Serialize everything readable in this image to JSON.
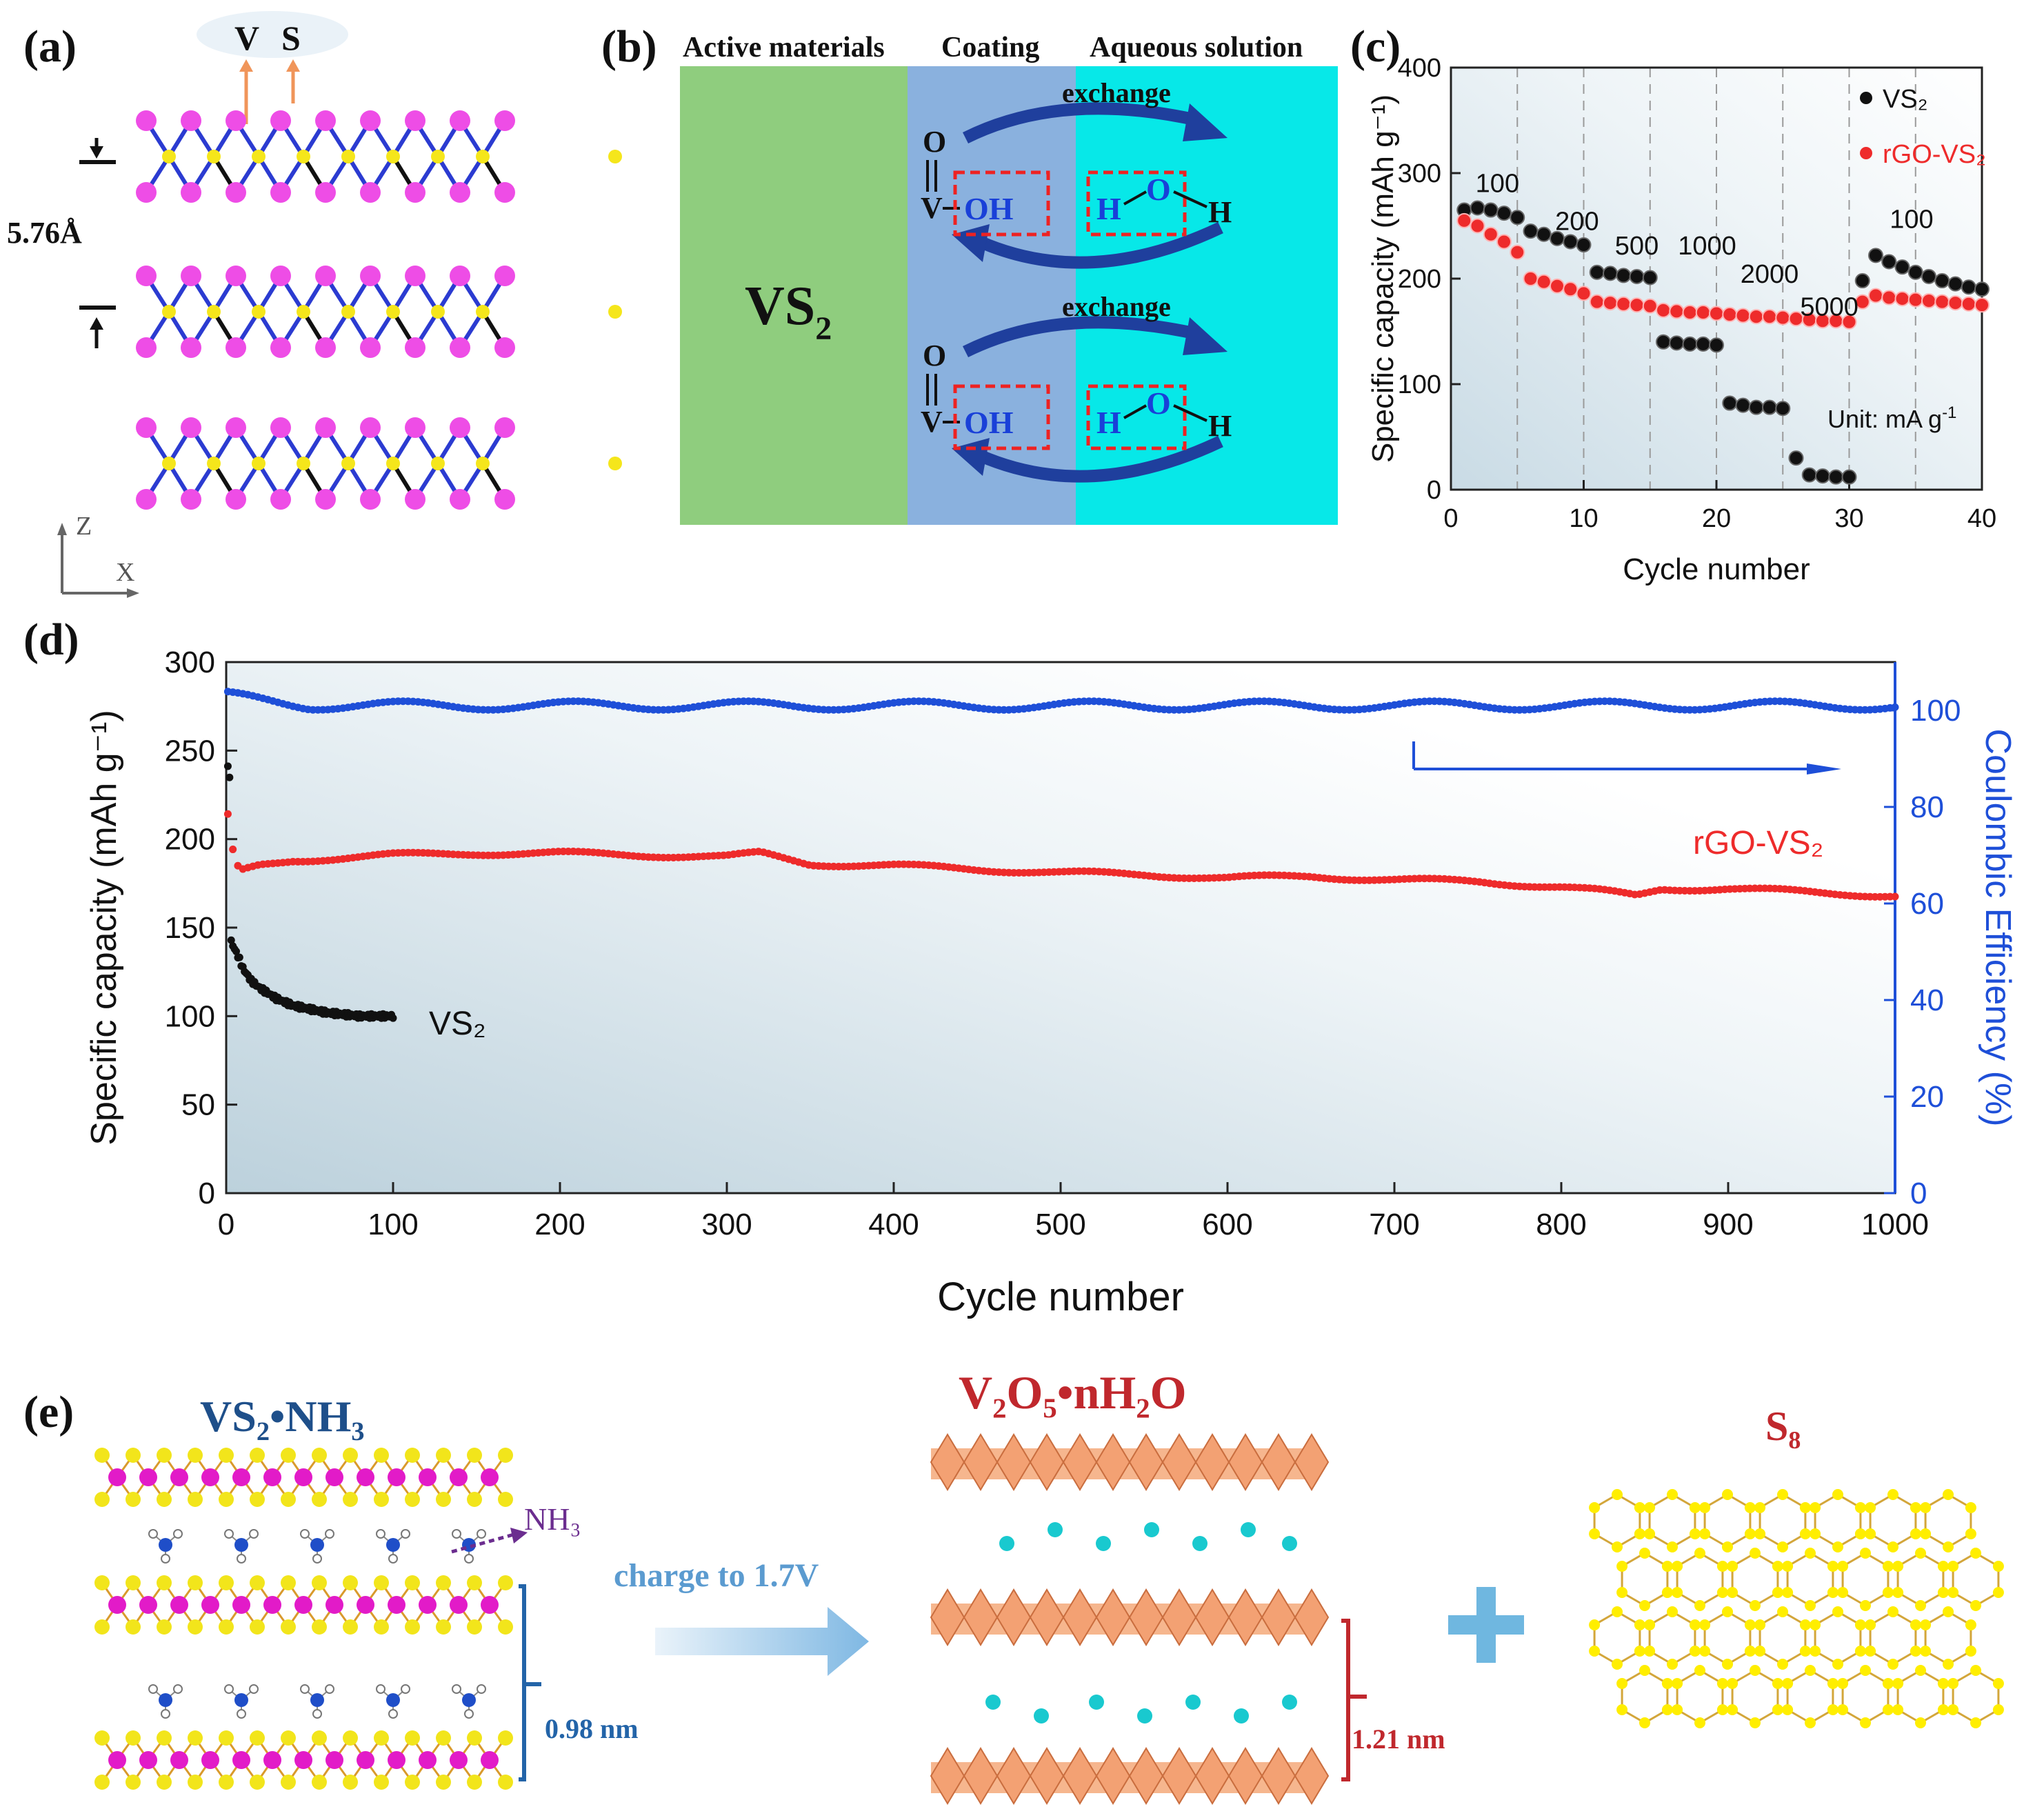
{
  "panel_labels": {
    "a": "(a)",
    "b": "(b)",
    "c": "(c)",
    "d": "(d)",
    "e": "(e)"
  },
  "panel_a": {
    "atom_v": "V",
    "atom_s": "S",
    "interlayer": "5.76Å",
    "axis_z": "Z",
    "axis_x": "X",
    "colors": {
      "v_atom": "#f5e61b",
      "s_atom": "#ee4de6",
      "bond": "#2b3bd1",
      "arrow": "#f0955a"
    }
  },
  "panel_b": {
    "headers": [
      "Active materials",
      "Coating",
      "Aqueous solution"
    ],
    "material": "VS",
    "material_sub": "2",
    "exchange_label": "exchange",
    "group_oh": "OH",
    "atom_v": "V",
    "atom_o": "O",
    "atom_h": "H",
    "colors": {
      "active": "#8fcd7e",
      "coating": "#8ab1de",
      "aqueous": "#07e8e8",
      "arrows": "#1f3f9d"
    }
  },
  "panel_c": {
    "unit_note": "Unit: mA g",
    "unit_sup": "-1",
    "rate_labels": [
      "100",
      "200",
      "500",
      "1000",
      "2000",
      "5000",
      "100"
    ]
  },
  "panel_d": {
    "right_axis_label": "Coulombic Efficiency (%)"
  },
  "panel_e": {
    "title_left": "VS₂•NH₃",
    "title_mid": "V₂O₅•nH₂O",
    "title_right": "S₈",
    "nh3_label": "NH₃",
    "arrow_label": "charge to 1.7V",
    "spacing_left": "0.98 nm",
    "spacing_mid": "1.21 nm",
    "plus": "+",
    "colors": {
      "title_blue": "#1e4f8a",
      "title_red": "#c0282d",
      "octahedra": "#f3a173",
      "ion": "#19c9cf",
      "sulfur": "#ffee00"
    }
  },
  "chart_data": [
    {
      "id": "c",
      "type": "scatter",
      "title": "",
      "xlabel": "Cycle number",
      "ylabel": "Specific capacity (mAh g⁻¹)",
      "xlim": [
        0,
        40
      ],
      "ylim": [
        0,
        400
      ],
      "xticks": [
        0,
        10,
        20,
        30,
        40
      ],
      "yticks": [
        0,
        100,
        200,
        300,
        400
      ],
      "x": [
        1,
        2,
        3,
        4,
        5,
        6,
        7,
        8,
        9,
        10,
        11,
        12,
        13,
        14,
        15,
        16,
        17,
        18,
        19,
        20,
        21,
        22,
        23,
        24,
        25,
        26,
        27,
        28,
        29,
        30,
        31,
        32,
        33,
        34,
        35,
        36,
        37,
        38,
        39,
        40
      ],
      "series": [
        {
          "name": "VS₂",
          "color": "#111111",
          "values": [
            265,
            267,
            265,
            262,
            258,
            245,
            242,
            238,
            235,
            232,
            206,
            205,
            203,
            202,
            201,
            140,
            139,
            138,
            138,
            137,
            82,
            80,
            78,
            78,
            77,
            30,
            14,
            13,
            12,
            12,
            198,
            222,
            216,
            211,
            206,
            202,
            198,
            195,
            192,
            190
          ]
        },
        {
          "name": "rGO-VS₂",
          "color": "#ee2b2b",
          "values": [
            255,
            250,
            242,
            235,
            225,
            200,
            197,
            193,
            190,
            186,
            178,
            177,
            176,
            175,
            174,
            170,
            169,
            168,
            168,
            167,
            166,
            165,
            164,
            164,
            163,
            162,
            161,
            160,
            160,
            159,
            178,
            184,
            182,
            181,
            180,
            179,
            178,
            177,
            176,
            175
          ]
        }
      ],
      "legend": "top-right",
      "grid": "vertical dashed lines every 5 cycles"
    },
    {
      "id": "d",
      "type": "scatter",
      "title": "",
      "xlabel": "Cycle number",
      "ylabel": "Specific capacity (mAh g⁻¹)",
      "y2label": "Coulombic Efficiency (%)",
      "xlim": [
        0,
        1000
      ],
      "ylim": [
        0,
        300
      ],
      "y2lim": [
        0,
        110
      ],
      "xticks": [
        0,
        100,
        200,
        300,
        400,
        500,
        600,
        700,
        800,
        900,
        1000
      ],
      "yticks": [
        0,
        50,
        100,
        150,
        200,
        250,
        300
      ],
      "y2ticks": [
        0,
        20,
        40,
        60,
        80,
        100
      ],
      "series": [
        {
          "name": "rGO-VS₂",
          "color": "#ee2b2b",
          "axis": "left",
          "x": [
            1,
            3,
            5,
            10,
            20,
            40,
            60,
            100,
            150,
            200,
            250,
            300,
            320,
            350,
            400,
            450,
            500,
            550,
            600,
            650,
            700,
            750,
            800,
            820,
            845,
            860,
            900,
            950,
            1000
          ],
          "values": [
            213,
            201,
            185,
            182,
            185,
            188,
            189,
            191,
            192,
            192,
            191,
            190,
            192,
            186,
            185,
            183,
            181,
            180,
            178,
            179,
            177,
            176,
            173,
            171,
            168,
            172,
            172,
            170,
            168
          ]
        },
        {
          "name": "VS₂",
          "color": "#111111",
          "axis": "left",
          "x": [
            1,
            2,
            3,
            5,
            8,
            10,
            15,
            20,
            25,
            30,
            40,
            50,
            60,
            70,
            80,
            90,
            100
          ],
          "values": [
            240,
            236,
            142,
            138,
            132,
            127,
            120,
            116,
            113,
            110,
            106,
            104,
            102,
            101,
            100,
            100,
            100
          ]
        },
        {
          "name": "Coulombic Efficiency",
          "color": "#1e4fd8",
          "axis": "right",
          "x": [
            1,
            50,
            100,
            200,
            300,
            400,
            500,
            600,
            700,
            800,
            900,
            1000
          ],
          "values": [
            103,
            101,
            101,
            101,
            101,
            101,
            101,
            101,
            101,
            101,
            101,
            101
          ]
        }
      ],
      "annotations": [
        "rGO-VS₂",
        "VS₂"
      ]
    }
  ]
}
